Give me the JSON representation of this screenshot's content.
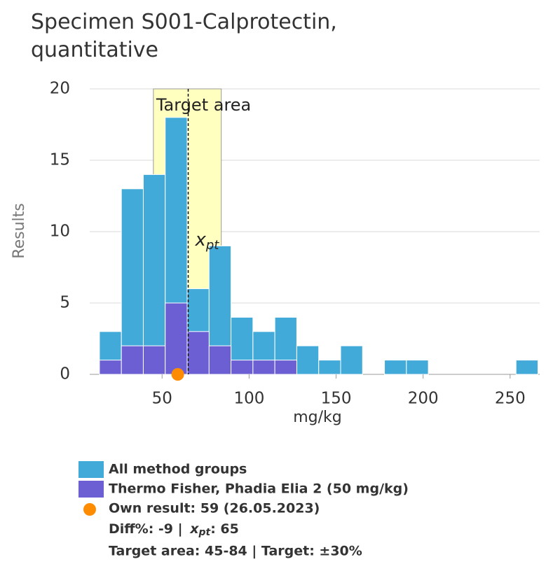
{
  "chart_data": {
    "type": "histogram",
    "title": "Specimen S001-Calprotectin, quantitative",
    "ylabel": "Results",
    "xlabel": "mg/kg",
    "bins": [
      14,
      26.6,
      39.2,
      51.8,
      64.4,
      77,
      89.6,
      102.2,
      114.8,
      127.4,
      140,
      152.6,
      165.2,
      177.8,
      190.4,
      203,
      215.6,
      228.2,
      240.8,
      253.4,
      266
    ],
    "series": [
      {
        "name": "All method groups",
        "color": "#42aad8",
        "values": [
          3,
          13,
          14,
          18,
          6,
          9,
          4,
          3,
          4,
          2,
          1,
          2,
          0,
          1,
          1,
          0,
          0,
          0,
          0,
          1
        ]
      },
      {
        "name": "Thermo Fisher, Phadia Elia 2 (50 mg/kg)",
        "color": "#6b5fd3",
        "values": [
          1,
          2,
          2,
          5,
          3,
          2,
          1,
          1,
          1,
          0,
          0,
          0,
          0,
          0,
          0,
          0,
          0,
          0,
          0,
          0
        ]
      }
    ],
    "xlim": [
      8.4,
      267
    ],
    "xticks": [
      50,
      100,
      150,
      200,
      250
    ],
    "ylim": [
      0,
      20
    ],
    "yticks": [
      0,
      5,
      10,
      15,
      20
    ],
    "grid": true,
    "target_area": {
      "label": "Target area",
      "range": [
        45,
        84
      ],
      "color": "#ffffc0"
    },
    "xpt": {
      "value": 65,
      "symbol": "x",
      "subscript": "pt"
    },
    "own_result": {
      "value": 59,
      "label": "Own result: 59 (26.05.2023)",
      "color": "#ff8c00"
    },
    "legend_notes": {
      "diff_prefix": "Diff%: -9 | ",
      "diff_symbol": "x",
      "diff_subscript": "pt",
      "diff_suffix": ": 65",
      "target_line": "Target area: 45-84 | Target: ±30%"
    }
  }
}
